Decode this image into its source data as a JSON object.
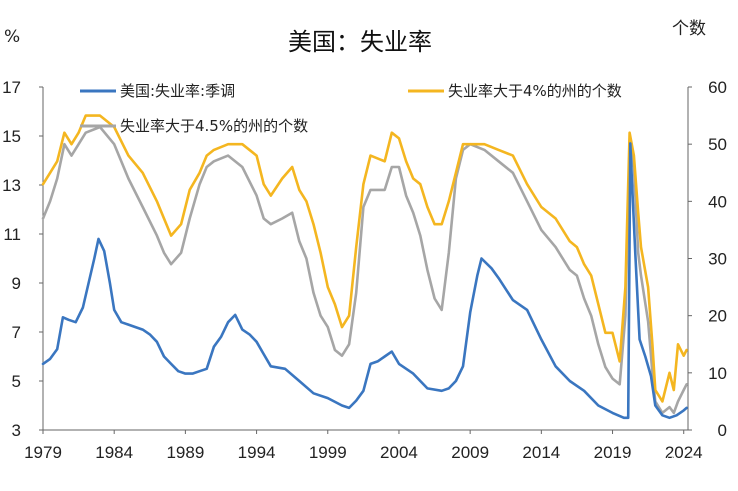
{
  "chart_data": {
    "type": "line",
    "title": "美国：失业率",
    "ylabel_left": "%",
    "ylabel_right": "个数",
    "x_ticks": [
      "1979",
      "1984",
      "1989",
      "1994",
      "1999",
      "2004",
      "2009",
      "2014",
      "2019",
      "2024"
    ],
    "xlim": [
      1979,
      2024.3
    ],
    "ylim_left": [
      3,
      17
    ],
    "ylim_right": [
      0,
      60
    ],
    "y_ticks_left": [
      3,
      5,
      7,
      9,
      11,
      13,
      15,
      17
    ],
    "y_ticks_right": [
      0,
      10,
      20,
      30,
      40,
      50,
      60
    ],
    "grid": false,
    "legend_position": "top",
    "series": [
      {
        "name": "美国:失业率:季调",
        "axis": "left",
        "color": "#3a76c0",
        "x": [
          1979.0,
          1979.5,
          1980.0,
          1980.4,
          1980.8,
          1981.3,
          1981.8,
          1982.2,
          1982.6,
          1982.9,
          1983.3,
          1983.7,
          1984.0,
          1984.5,
          1985.0,
          1985.5,
          1986.0,
          1986.5,
          1987.0,
          1987.5,
          1988.0,
          1988.5,
          1989.0,
          1989.5,
          1990.0,
          1990.5,
          1991.0,
          1991.5,
          1992.0,
          1992.5,
          1993.0,
          1993.5,
          1994.0,
          1994.5,
          1995.0,
          1996.0,
          1997.0,
          1998.0,
          1999.0,
          2000.0,
          2000.5,
          2001.0,
          2001.5,
          2002.0,
          2002.5,
          2003.0,
          2003.5,
          2004.0,
          2005.0,
          2006.0,
          2007.0,
          2007.5,
          2008.0,
          2008.5,
          2009.0,
          2009.5,
          2009.8,
          2010.5,
          2011.0,
          2012.0,
          2013.0,
          2014.0,
          2015.0,
          2016.0,
          2017.0,
          2018.0,
          2019.0,
          2019.8,
          2020.1,
          2020.25,
          2020.35,
          2020.6,
          2020.9,
          2021.3,
          2021.7,
          2022.0,
          2022.5,
          2023.0,
          2023.5,
          2024.0,
          2024.2
        ],
        "values": [
          5.7,
          5.9,
          6.3,
          7.6,
          7.5,
          7.4,
          8.0,
          9.0,
          10.0,
          10.8,
          10.3,
          9.0,
          7.9,
          7.4,
          7.3,
          7.2,
          7.1,
          6.9,
          6.6,
          6.0,
          5.7,
          5.4,
          5.3,
          5.3,
          5.4,
          5.5,
          6.4,
          6.8,
          7.4,
          7.7,
          7.1,
          6.9,
          6.6,
          6.1,
          5.6,
          5.5,
          5.0,
          4.5,
          4.3,
          4.0,
          3.9,
          4.2,
          4.6,
          5.7,
          5.8,
          6.0,
          6.2,
          5.7,
          5.3,
          4.7,
          4.6,
          4.7,
          5.0,
          5.6,
          7.8,
          9.3,
          10.0,
          9.6,
          9.2,
          8.3,
          7.9,
          6.7,
          5.6,
          5.0,
          4.6,
          4.0,
          3.7,
          3.5,
          3.5,
          14.7,
          13.3,
          10.2,
          6.7,
          6.0,
          5.2,
          4.0,
          3.6,
          3.5,
          3.6,
          3.8,
          3.9
        ]
      },
      {
        "name": "失业率大于4%的州的个数",
        "axis": "right",
        "color": "#f4b620",
        "x": [
          1979.0,
          1979.5,
          1980.0,
          1980.5,
          1981.0,
          1981.5,
          1982.0,
          1983.0,
          1984.0,
          1985.0,
          1986.0,
          1987.0,
          1987.5,
          1988.0,
          1988.7,
          1989.3,
          1990.0,
          1990.5,
          1991.0,
          1992.0,
          1993.0,
          1994.0,
          1994.5,
          1995.0,
          1995.8,
          1996.5,
          1997.0,
          1997.5,
          1998.0,
          1998.5,
          1999.0,
          1999.5,
          2000.0,
          2000.5,
          2001.0,
          2001.5,
          2002.0,
          2003.0,
          2003.5,
          2004.0,
          2004.5,
          2005.0,
          2005.5,
          2006.0,
          2006.5,
          2007.0,
          2007.5,
          2008.0,
          2008.5,
          2009.0,
          2010.0,
          2011.0,
          2012.0,
          2013.0,
          2014.0,
          2015.0,
          2016.0,
          2016.5,
          2017.0,
          2017.5,
          2018.0,
          2018.5,
          2019.0,
          2019.5,
          2019.9,
          2020.2,
          2020.5,
          2020.8,
          2021.0,
          2021.5,
          2021.8,
          2022.0,
          2022.5,
          2023.0,
          2023.3,
          2023.6,
          2024.0,
          2024.2
        ],
        "values": [
          43,
          45,
          47,
          52,
          50,
          52,
          55,
          55,
          53,
          48,
          45,
          40,
          37,
          34,
          36,
          42,
          45,
          48,
          49,
          50,
          50,
          48,
          43,
          41,
          44,
          46,
          42,
          40,
          36,
          31,
          25,
          22,
          18,
          20,
          32,
          43,
          48,
          47,
          52,
          51,
          47,
          44,
          43,
          39,
          36,
          36,
          40,
          45,
          50,
          50,
          50,
          49,
          48,
          43,
          39,
          37,
          33,
          32,
          29,
          27,
          22,
          17,
          17,
          12,
          25,
          52,
          48,
          38,
          32,
          25,
          15,
          7,
          5,
          10,
          7,
          15,
          13,
          14
        ]
      },
      {
        "name": "失业率大于4.5%的州的个数",
        "axis": "right",
        "color": "#a6a6a6",
        "x": [
          1979.0,
          1979.5,
          1980.0,
          1980.5,
          1981.0,
          1981.5,
          1982.0,
          1983.0,
          1984.0,
          1985.0,
          1986.0,
          1987.0,
          1987.5,
          1988.0,
          1988.7,
          1989.3,
          1990.0,
          1990.5,
          1991.0,
          1992.0,
          1993.0,
          1994.0,
          1994.5,
          1995.0,
          1995.8,
          1996.5,
          1997.0,
          1997.5,
          1998.0,
          1998.5,
          1999.0,
          1999.5,
          2000.0,
          2000.5,
          2001.0,
          2001.5,
          2002.0,
          2003.0,
          2003.5,
          2004.0,
          2004.5,
          2005.0,
          2005.5,
          2006.0,
          2006.5,
          2007.0,
          2007.5,
          2008.0,
          2008.5,
          2009.0,
          2010.0,
          2011.0,
          2012.0,
          2013.0,
          2014.0,
          2015.0,
          2016.0,
          2016.5,
          2017.0,
          2017.5,
          2018.0,
          2018.5,
          2019.0,
          2019.5,
          2019.9,
          2020.2,
          2020.5,
          2020.8,
          2021.0,
          2021.5,
          2021.8,
          2022.0,
          2022.5,
          2023.0,
          2023.3,
          2023.6,
          2024.0,
          2024.2
        ],
        "values": [
          37,
          40,
          44,
          50,
          48,
          50,
          52,
          53,
          50,
          44,
          39,
          34,
          31,
          29,
          31,
          37,
          43,
          46,
          47,
          48,
          46,
          41,
          37,
          36,
          37,
          38,
          33,
          30,
          24,
          20,
          18,
          14,
          13,
          15,
          24,
          39,
          42,
          42,
          46,
          46,
          41,
          38,
          34,
          28,
          23,
          21,
          31,
          44,
          49,
          50,
          49,
          47,
          45,
          40,
          35,
          32,
          28,
          27,
          23,
          20,
          15,
          11,
          9,
          8,
          20,
          50,
          46,
          31,
          27,
          19,
          10,
          5,
          3,
          4,
          3,
          5,
          7,
          8
        ]
      }
    ]
  }
}
